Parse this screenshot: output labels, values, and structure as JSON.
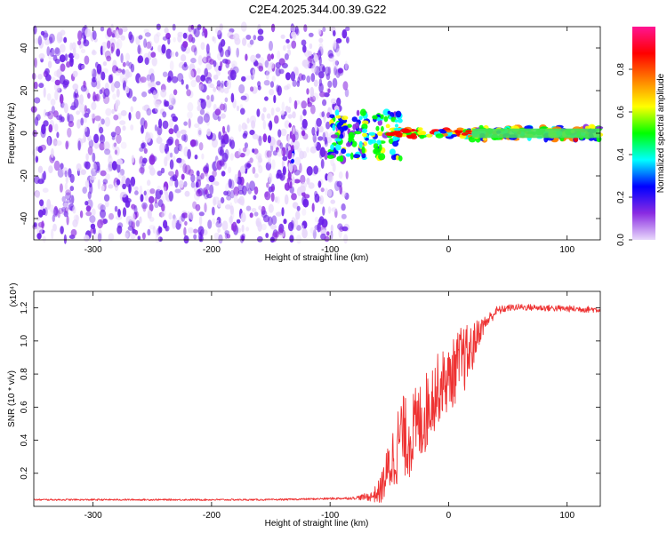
{
  "title": "C2E4.2025.344.00.39.G22",
  "colors": {
    "snr_line": "#ee3333",
    "spectrogram_noise": "#6a1fe8",
    "spectrogram_signal": "#00c8c8",
    "colorbar": [
      "#e8d8fb",
      "#8a2be2",
      "#0000ff",
      "#00ffff",
      "#00ff00",
      "#ffff00",
      "#ff8000",
      "#ff0000",
      "#ff1493"
    ]
  },
  "chart_data": [
    {
      "type": "heatmap",
      "panel": "top",
      "xlabel": "Height of straight line (km)",
      "ylabel": "Frequency (Hz)",
      "xlim": [
        -350,
        128
      ],
      "ylim": [
        -50,
        50
      ],
      "x_ticks": [
        -300,
        -200,
        -100,
        0,
        100
      ],
      "x_tick_labels": [
        "-300",
        "-200",
        "-100",
        "0",
        "100"
      ],
      "y_ticks": [
        -40,
        -20,
        0,
        20,
        40
      ],
      "y_tick_labels": [
        "-40",
        "-20",
        "0",
        "20",
        "40"
      ],
      "colorbar": {
        "label": "Normalized spectral amplitude",
        "range": [
          0,
          1
        ],
        "ticks": [
          0.0,
          0.2,
          0.4,
          0.6,
          0.8
        ],
        "tick_labels": [
          "0.0",
          "0.2",
          "0.4",
          "0.6",
          "0.8"
        ]
      },
      "regions": [
        {
          "x_from": -350,
          "x_to": -85,
          "freq_from": -50,
          "freq_to": 50,
          "amplitude": 0.1,
          "pattern": "broadband noise"
        },
        {
          "x_from": -135,
          "x_to": -130,
          "freq_from": -25,
          "freq_to": 5,
          "amplitude": 0.2,
          "pattern": "streak"
        },
        {
          "x_from": -100,
          "x_to": -40,
          "freq_from": -12,
          "freq_to": 10,
          "amplitude": 0.45,
          "pattern": "scattered tone"
        },
        {
          "x_from": -50,
          "x_to": 20,
          "freq_from": -2,
          "freq_to": 2,
          "amplitude": 0.8,
          "pattern": "tone"
        },
        {
          "x_from": 20,
          "x_to": 128,
          "freq_from": -3,
          "freq_to": 3,
          "amplitude": 0.55,
          "pattern": "steady tone"
        }
      ]
    },
    {
      "type": "line",
      "panel": "bottom",
      "xlabel": "Height of straight line (km)",
      "ylabel": "SNR (10 * v/v)",
      "y_multiplier": "(x10⁴)",
      "xlim": [
        -350,
        128
      ],
      "ylim": [
        0,
        13000
      ],
      "x_ticks": [
        -300,
        -200,
        -100,
        0,
        100
      ],
      "x_tick_labels": [
        "-300",
        "-200",
        "-100",
        "0",
        "100"
      ],
      "y_ticks": [
        2000,
        4000,
        6000,
        8000,
        10000,
        12000
      ],
      "y_tick_labels": [
        "0.2",
        "0.4",
        "0.6",
        "0.8",
        "1.0",
        "1.2"
      ],
      "series": [
        {
          "x": [
            -350,
            -300,
            -250,
            -200,
            -150,
            -110,
            -80,
            -65,
            -58,
            -52,
            -48,
            -45,
            -40,
            -35,
            -30,
            -25,
            -20,
            -15,
            -10,
            -5,
            0,
            5,
            10,
            15,
            20,
            25,
            30,
            40,
            50,
            60,
            80,
            100,
            128
          ],
          "y": [
            400,
            400,
            400,
            400,
            400,
            450,
            500,
            600,
            900,
            2000,
            2800,
            3200,
            4500,
            4000,
            4500,
            5000,
            5500,
            6500,
            7000,
            7500,
            7600,
            8200,
            8800,
            9000,
            9500,
            10500,
            11000,
            11800,
            12000,
            12050,
            12000,
            11950,
            11900
          ],
          "noise": [
            50,
            50,
            50,
            50,
            50,
            60,
            80,
            300,
            800,
            1500,
            2000,
            2200,
            2400,
            2500,
            2500,
            2500,
            2500,
            2300,
            2200,
            2000,
            2000,
            2100,
            2100,
            2000,
            1500,
            900,
            500,
            300,
            200,
            200,
            200,
            200,
            200
          ]
        }
      ]
    }
  ]
}
